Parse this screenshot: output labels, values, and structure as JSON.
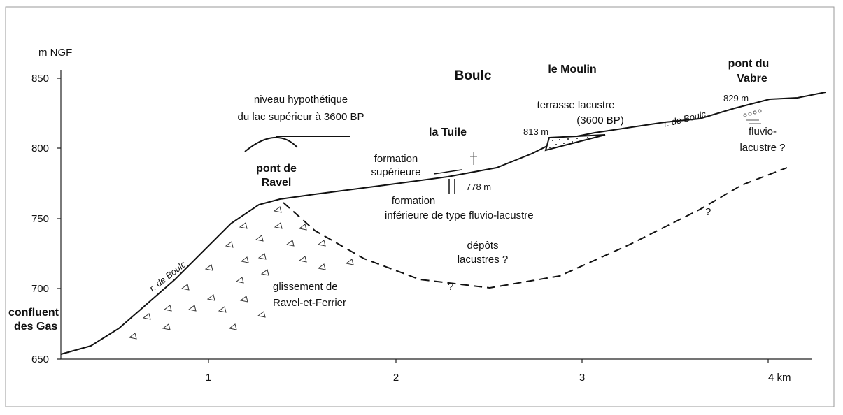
{
  "y_axis": {
    "unit": "m NGF",
    "ticks": [
      "850",
      "800",
      "750",
      "700",
      "650"
    ]
  },
  "x_axis": {
    "ticks": [
      "1",
      "2",
      "3",
      "4 km"
    ]
  },
  "places": {
    "confluent": [
      "confluent",
      "des Gas"
    ],
    "pont_ravel": [
      "pont de",
      "Ravel"
    ],
    "boulc": "Boulc",
    "moulin": "le Moulin",
    "pont_vabre": [
      "pont du",
      "Vabre"
    ],
    "tuile": "la Tuile"
  },
  "river_labels": [
    "r. de Boulc",
    "r. de Boulc"
  ],
  "annotations": {
    "lake_level": [
      "niveau hypothétique",
      "du lac supérieur à 3600 BP"
    ],
    "terrace": [
      "terrasse lacustre",
      "(3600 BP)"
    ],
    "upper_formation": [
      "formation",
      "supérieure"
    ],
    "lower_formation": [
      "formation",
      "inférieure de type fluvio-lacustre"
    ],
    "fluvio": [
      "fluvio-",
      "lacustre ?"
    ],
    "lake_deposits": [
      "dépôts",
      "lacustres ?"
    ],
    "landslide": [
      "glissement de",
      "Ravel-et-Ferrier"
    ],
    "questions": [
      "?",
      "?"
    ]
  },
  "elevations": [
    "813 m",
    "829 m",
    "778 m"
  ]
}
